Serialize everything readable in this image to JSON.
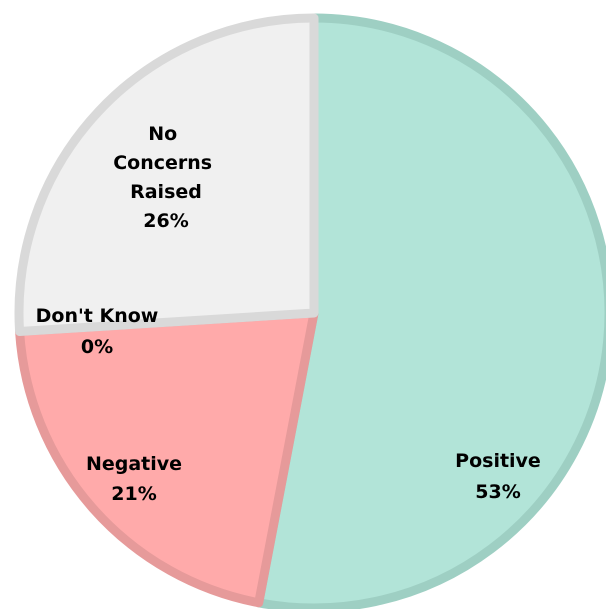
{
  "chart_data": {
    "type": "pie",
    "title": "",
    "start_angle_deg": 0,
    "direction": "clockwise",
    "slices": [
      {
        "label": "Positive",
        "value": 53,
        "value_label": "53%",
        "fill": "#b2e4d8",
        "stroke": "#9ecfc3"
      },
      {
        "label": "Negative",
        "value": 21,
        "value_label": "21%",
        "fill": "#ffaaaa",
        "stroke": "#e69a9a"
      },
      {
        "label": "Don't Know",
        "value": 0,
        "value_label": "0%",
        "fill": "#d9d9d9",
        "stroke": "#d9d9d9"
      },
      {
        "label": "No Concerns Raised",
        "value": 26,
        "value_label": "26%",
        "fill": "#f0f0f0",
        "stroke": "#d9d9d9"
      }
    ],
    "legend": "none"
  }
}
